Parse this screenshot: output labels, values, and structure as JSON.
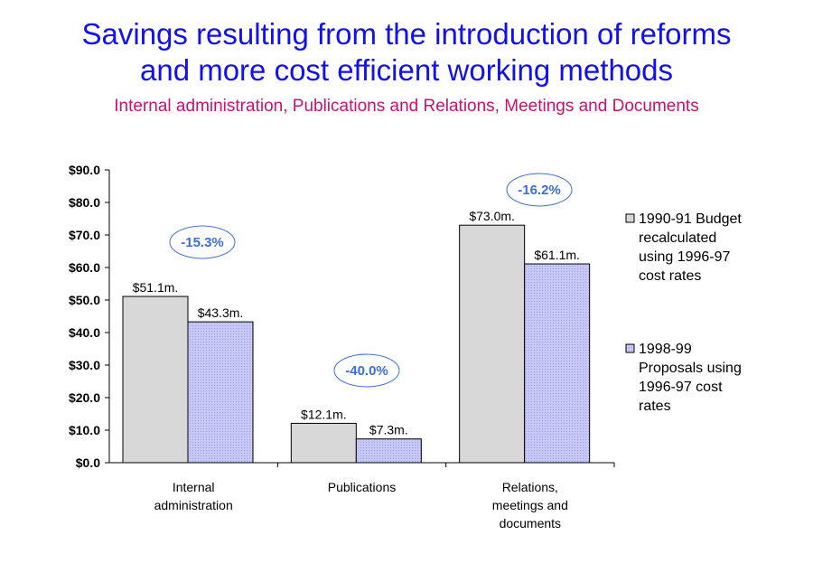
{
  "title_line1": "Savings resulting from the introduction of reforms",
  "title_line2": "and more cost efficient working methods",
  "subtitle": "Internal administration, Publications and Relations, Meetings and Documents",
  "colors": {
    "title": "#1010f0",
    "subtitle": "#cc1070",
    "series1": "#d8d8d8",
    "series2": "#c4c4f4",
    "pct": "#3a6fd8"
  },
  "chart_data": {
    "type": "bar",
    "ylim": [
      0,
      90
    ],
    "yticks": [
      "$0.0",
      "$10.0",
      "$20.0",
      "$30.0",
      "$40.0",
      "$50.0",
      "$60.0",
      "$70.0",
      "$80.0",
      "$90.0"
    ],
    "categories": [
      [
        "Internal",
        "administration"
      ],
      [
        "Publications"
      ],
      [
        "Relations,",
        "meetings and",
        "documents"
      ]
    ],
    "series": [
      {
        "name_lines": [
          "1990-91 Budget",
          "recalculated",
          "using 1996-97",
          "cost rates"
        ],
        "values": [
          51.1,
          12.1,
          73.0
        ],
        "labels": [
          "$51.1m.",
          "$12.1m.",
          "$73.0m."
        ]
      },
      {
        "name_lines": [
          "1998-99",
          "Proposals using",
          "1996-97 cost",
          "rates"
        ],
        "values": [
          43.3,
          7.3,
          61.1
        ],
        "labels": [
          "$43.3m.",
          "$7.3m.",
          "$61.1m."
        ]
      }
    ],
    "annotations": [
      "-15.3%",
      "-40.0%",
      "-16.2%"
    ],
    "legend": "right",
    "grid": false
  }
}
